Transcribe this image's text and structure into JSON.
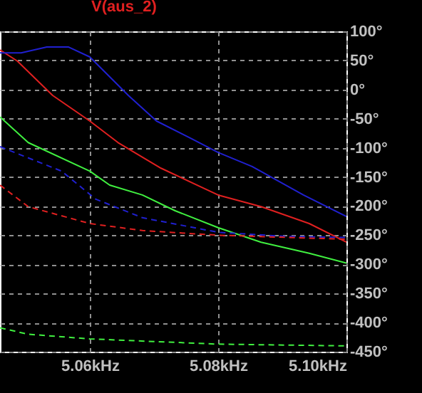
{
  "chart_data": {
    "type": "line",
    "title": "V(aus_2)",
    "xlim": [
      5.046,
      5.1
    ],
    "ylim": [
      -450,
      100
    ],
    "xticks": [
      {
        "value": 5.06,
        "label": "5.06kHz"
      },
      {
        "value": 5.08,
        "label": "5.08kHz"
      },
      {
        "value": 5.1,
        "label": "5.10kHz"
      }
    ],
    "yticks": [
      {
        "value": 100,
        "label": "100°"
      },
      {
        "value": 50,
        "label": "50°"
      },
      {
        "value": 0,
        "label": "0°"
      },
      {
        "value": -50,
        "label": "-50°"
      },
      {
        "value": -100,
        "label": "-100°"
      },
      {
        "value": -150,
        "label": "-150°"
      },
      {
        "value": -200,
        "label": "-200°"
      },
      {
        "value": -250,
        "label": "-250°"
      },
      {
        "value": -300,
        "label": "-300°"
      },
      {
        "value": -350,
        "label": "-350°"
      },
      {
        "value": -400,
        "label": "-400°"
      },
      {
        "value": -450,
        "label": "-450°"
      }
    ],
    "grid": true,
    "marker": "none",
    "series": [
      {
        "color": "#e02020",
        "line_style": "solid",
        "x": [
          5.046,
          5.0487,
          5.0542,
          5.06,
          5.0644,
          5.0711,
          5.08,
          5.0867,
          5.0942,
          5.1
        ],
        "values": [
          68,
          49,
          -10,
          -54,
          -91,
          -135,
          -181,
          -201,
          -230,
          -262
        ]
      },
      {
        "color": "#2020d0",
        "line_style": "solid",
        "x": [
          5.046,
          5.0493,
          5.0533,
          5.0567,
          5.06,
          5.066,
          5.0704,
          5.0756,
          5.08,
          5.0853,
          5.0933,
          5.1
        ],
        "values": [
          63,
          63,
          73,
          73,
          56,
          -10,
          -54,
          -83,
          -108,
          -132,
          -181,
          -218
        ]
      },
      {
        "color": "#40f040",
        "line_style": "solid",
        "x": [
          5.046,
          5.0504,
          5.06,
          5.0631,
          5.0682,
          5.0733,
          5.08,
          5.0867,
          5.0942,
          5.1
        ],
        "values": [
          -47,
          -91,
          -140,
          -164,
          -181,
          -208,
          -237,
          -262,
          -281,
          -298
        ]
      },
      {
        "color": "#2020d0",
        "line_style": "dashed",
        "x": [
          5.046,
          5.0556,
          5.0609,
          5.0682,
          5.08,
          5.0904,
          5.1
        ],
        "values": [
          -98,
          -140,
          -188,
          -220,
          -245,
          -252,
          -254
        ]
      },
      {
        "color": "#e02020",
        "line_style": "dashed",
        "x": [
          5.046,
          5.0504,
          5.06,
          5.0682,
          5.08,
          5.1
        ],
        "values": [
          -164,
          -201,
          -230,
          -242,
          -250,
          -257
        ]
      },
      {
        "color": "#40f040",
        "line_style": "dashed",
        "x": [
          5.046,
          5.0504,
          5.06,
          5.08,
          5.1
        ],
        "values": [
          -409,
          -420,
          -428,
          -437,
          -440
        ]
      }
    ]
  }
}
